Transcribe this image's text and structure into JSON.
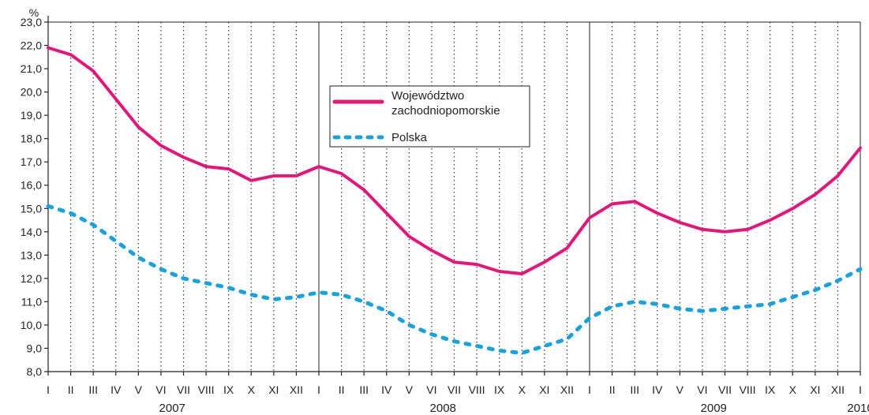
{
  "chart_data": {
    "type": "line",
    "ylabel": "%",
    "ylim": [
      8.0,
      23.0
    ],
    "yticks": [
      "8,0",
      "9,0",
      "10,0",
      "11,0",
      "12,0",
      "13,0",
      "14,0",
      "15,0",
      "16,0",
      "17,0",
      "18,0",
      "19,0",
      "20,0",
      "21,0",
      "22,0",
      "23,0"
    ],
    "months": [
      "I",
      "II",
      "III",
      "IV",
      "V",
      "VI",
      "VII",
      "VIII",
      "IX",
      "X",
      "XI",
      "XII",
      "I",
      "II",
      "III",
      "IV",
      "V",
      "VI",
      "VII",
      "VIII",
      "IX",
      "X",
      "XI",
      "XII",
      "I",
      "II",
      "III",
      "IV",
      "V",
      "VI",
      "VII",
      "VIII",
      "IX",
      "X",
      "XI",
      "XII",
      "I"
    ],
    "years": [
      {
        "label": "2007",
        "start": 0,
        "end": 11
      },
      {
        "label": "2008",
        "start": 12,
        "end": 23
      },
      {
        "label": "2009",
        "start": 24,
        "end": 35
      },
      {
        "label": "2010",
        "start": 36,
        "end": 36
      }
    ],
    "grid": "dotted-vertical, solid at year boundaries",
    "legend_position": "top-center",
    "series": [
      {
        "name": "Województwo zachodniopomorskie",
        "color": "#e0187a",
        "style": "solid",
        "values": [
          21.9,
          21.6,
          20.9,
          19.7,
          18.5,
          17.7,
          17.2,
          16.8,
          16.7,
          16.2,
          16.4,
          16.4,
          16.8,
          16.5,
          15.8,
          14.8,
          13.8,
          13.2,
          12.7,
          12.6,
          12.3,
          12.2,
          12.7,
          13.3,
          14.6,
          15.2,
          15.3,
          14.8,
          14.4,
          14.1,
          14.0,
          14.1,
          14.5,
          15.0,
          15.6,
          16.4,
          17.6
        ]
      },
      {
        "name": "Polska",
        "color": "#1ea1d9",
        "style": "dotted",
        "values": [
          15.1,
          14.8,
          14.3,
          13.6,
          12.9,
          12.4,
          12.0,
          11.8,
          11.6,
          11.3,
          11.1,
          11.2,
          11.4,
          11.3,
          11.0,
          10.6,
          10.0,
          9.6,
          9.3,
          9.1,
          8.9,
          8.8,
          9.1,
          9.4,
          10.3,
          10.8,
          11.0,
          10.9,
          10.7,
          10.6,
          10.7,
          10.8,
          10.9,
          11.2,
          11.5,
          11.9,
          12.4
        ]
      }
    ]
  }
}
